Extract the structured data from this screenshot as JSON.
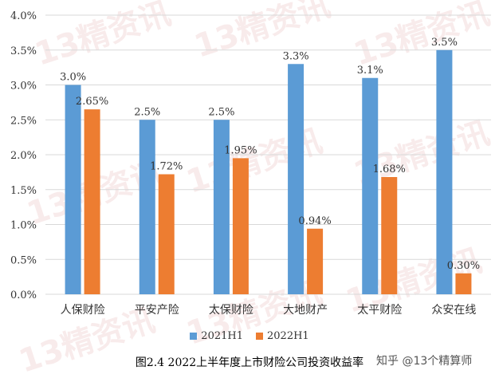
{
  "chart_data": {
    "type": "bar",
    "title": "",
    "categories": [
      "人保财险",
      "平安产险",
      "太保财险",
      "大地财产",
      "太平财险",
      "众安在线"
    ],
    "series": [
      {
        "name": "2021H1",
        "values": [
          3.0,
          2.5,
          2.5,
          3.3,
          3.1,
          3.5
        ],
        "labels": [
          "3.0%",
          "2.5%",
          "2.5%",
          "3.3%",
          "3.1%",
          "3.5%"
        ],
        "color": "#5b9bd5"
      },
      {
        "name": "2022H1",
        "values": [
          2.65,
          1.72,
          1.95,
          0.94,
          1.68,
          0.3
        ],
        "labels": [
          "2.65%",
          "1.72%",
          "1.95%",
          "0.94%",
          "1.68%",
          "0.30%"
        ],
        "color": "#ed7d31"
      }
    ],
    "ylim": [
      0,
      4.0
    ],
    "yticks": [
      "0.0%",
      "0.5%",
      "1.0%",
      "1.5%",
      "2.0%",
      "2.5%",
      "3.0%",
      "3.5%",
      "4.0%"
    ],
    "grid": true,
    "legend_position": "bottom"
  },
  "caption": "图2.4  2022上半年度上市财险公司投资收益率",
  "credit": "知乎 @13个精算师",
  "watermark": "13精资讯"
}
